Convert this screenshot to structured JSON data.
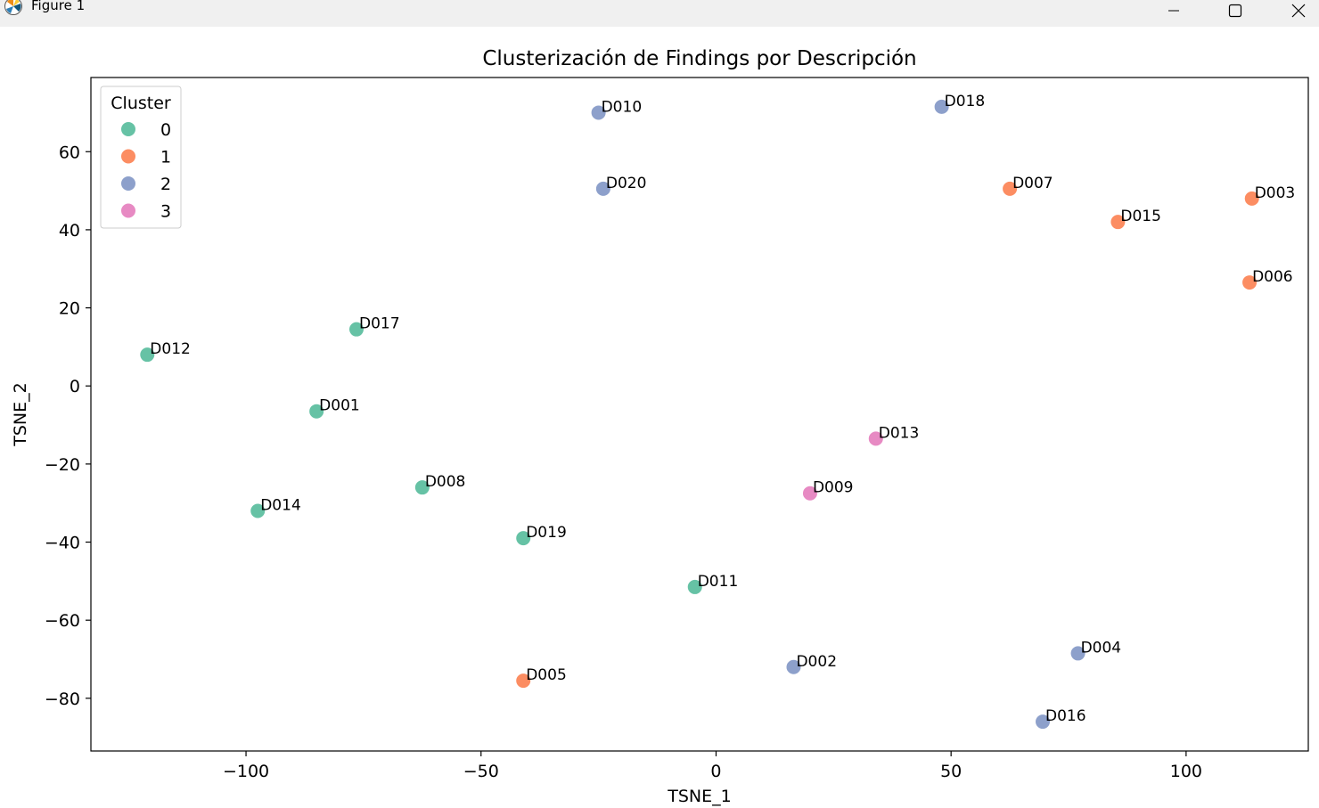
{
  "window": {
    "title": "Figure 1",
    "icon": "matplotlib-icon",
    "controls": [
      "minimize-icon",
      "maximize-icon",
      "close-icon"
    ]
  },
  "chart_data": {
    "type": "scatter",
    "title": "Clusterización de Findings por Descripción",
    "xlabel": "TSNE_1",
    "ylabel": "TSNE_2",
    "xlim": [
      -133,
      126
    ],
    "ylim": [
      -93.5,
      79
    ],
    "xticks": [
      -100,
      -50,
      0,
      50,
      100
    ],
    "yticks": [
      -80,
      -60,
      -40,
      -20,
      0,
      20,
      40,
      60
    ],
    "grid": false,
    "legend": {
      "title": "Cluster",
      "placement": "top-left",
      "entries": [
        {
          "label": "0",
          "color": "#66c2a5"
        },
        {
          "label": "1",
          "color": "#fc8d62"
        },
        {
          "label": "2",
          "color": "#8da0cb"
        },
        {
          "label": "3",
          "color": "#e78ac3"
        }
      ]
    },
    "points": [
      {
        "label": "D001",
        "x": -85,
        "y": -6.5,
        "cluster": 0
      },
      {
        "label": "D002",
        "x": 16.5,
        "y": -72,
        "cluster": 2
      },
      {
        "label": "D003",
        "x": 114,
        "y": 48,
        "cluster": 1
      },
      {
        "label": "D004",
        "x": 77,
        "y": -68.5,
        "cluster": 2
      },
      {
        "label": "D005",
        "x": -41,
        "y": -75.5,
        "cluster": 1
      },
      {
        "label": "D006",
        "x": 113.5,
        "y": 26.5,
        "cluster": 1
      },
      {
        "label": "D007",
        "x": 62.5,
        "y": 50.5,
        "cluster": 1
      },
      {
        "label": "D008",
        "x": -62.5,
        "y": -26,
        "cluster": 0
      },
      {
        "label": "D009",
        "x": 20,
        "y": -27.5,
        "cluster": 3
      },
      {
        "label": "D010",
        "x": -25,
        "y": 70,
        "cluster": 2
      },
      {
        "label": "D011",
        "x": -4.5,
        "y": -51.5,
        "cluster": 0
      },
      {
        "label": "D012",
        "x": -121,
        "y": 8,
        "cluster": 0
      },
      {
        "label": "D013",
        "x": 34,
        "y": -13.5,
        "cluster": 3
      },
      {
        "label": "D014",
        "x": -97.5,
        "y": -32,
        "cluster": 0
      },
      {
        "label": "D015",
        "x": 85.5,
        "y": 42,
        "cluster": 1
      },
      {
        "label": "D016",
        "x": 69.5,
        "y": -86,
        "cluster": 2
      },
      {
        "label": "D017",
        "x": -76.5,
        "y": 14.5,
        "cluster": 0
      },
      {
        "label": "D018",
        "x": 48,
        "y": 71.5,
        "cluster": 2
      },
      {
        "label": "D019",
        "x": -41,
        "y": -39,
        "cluster": 0
      },
      {
        "label": "D020",
        "x": -24,
        "y": 50.5,
        "cluster": 2
      }
    ]
  }
}
